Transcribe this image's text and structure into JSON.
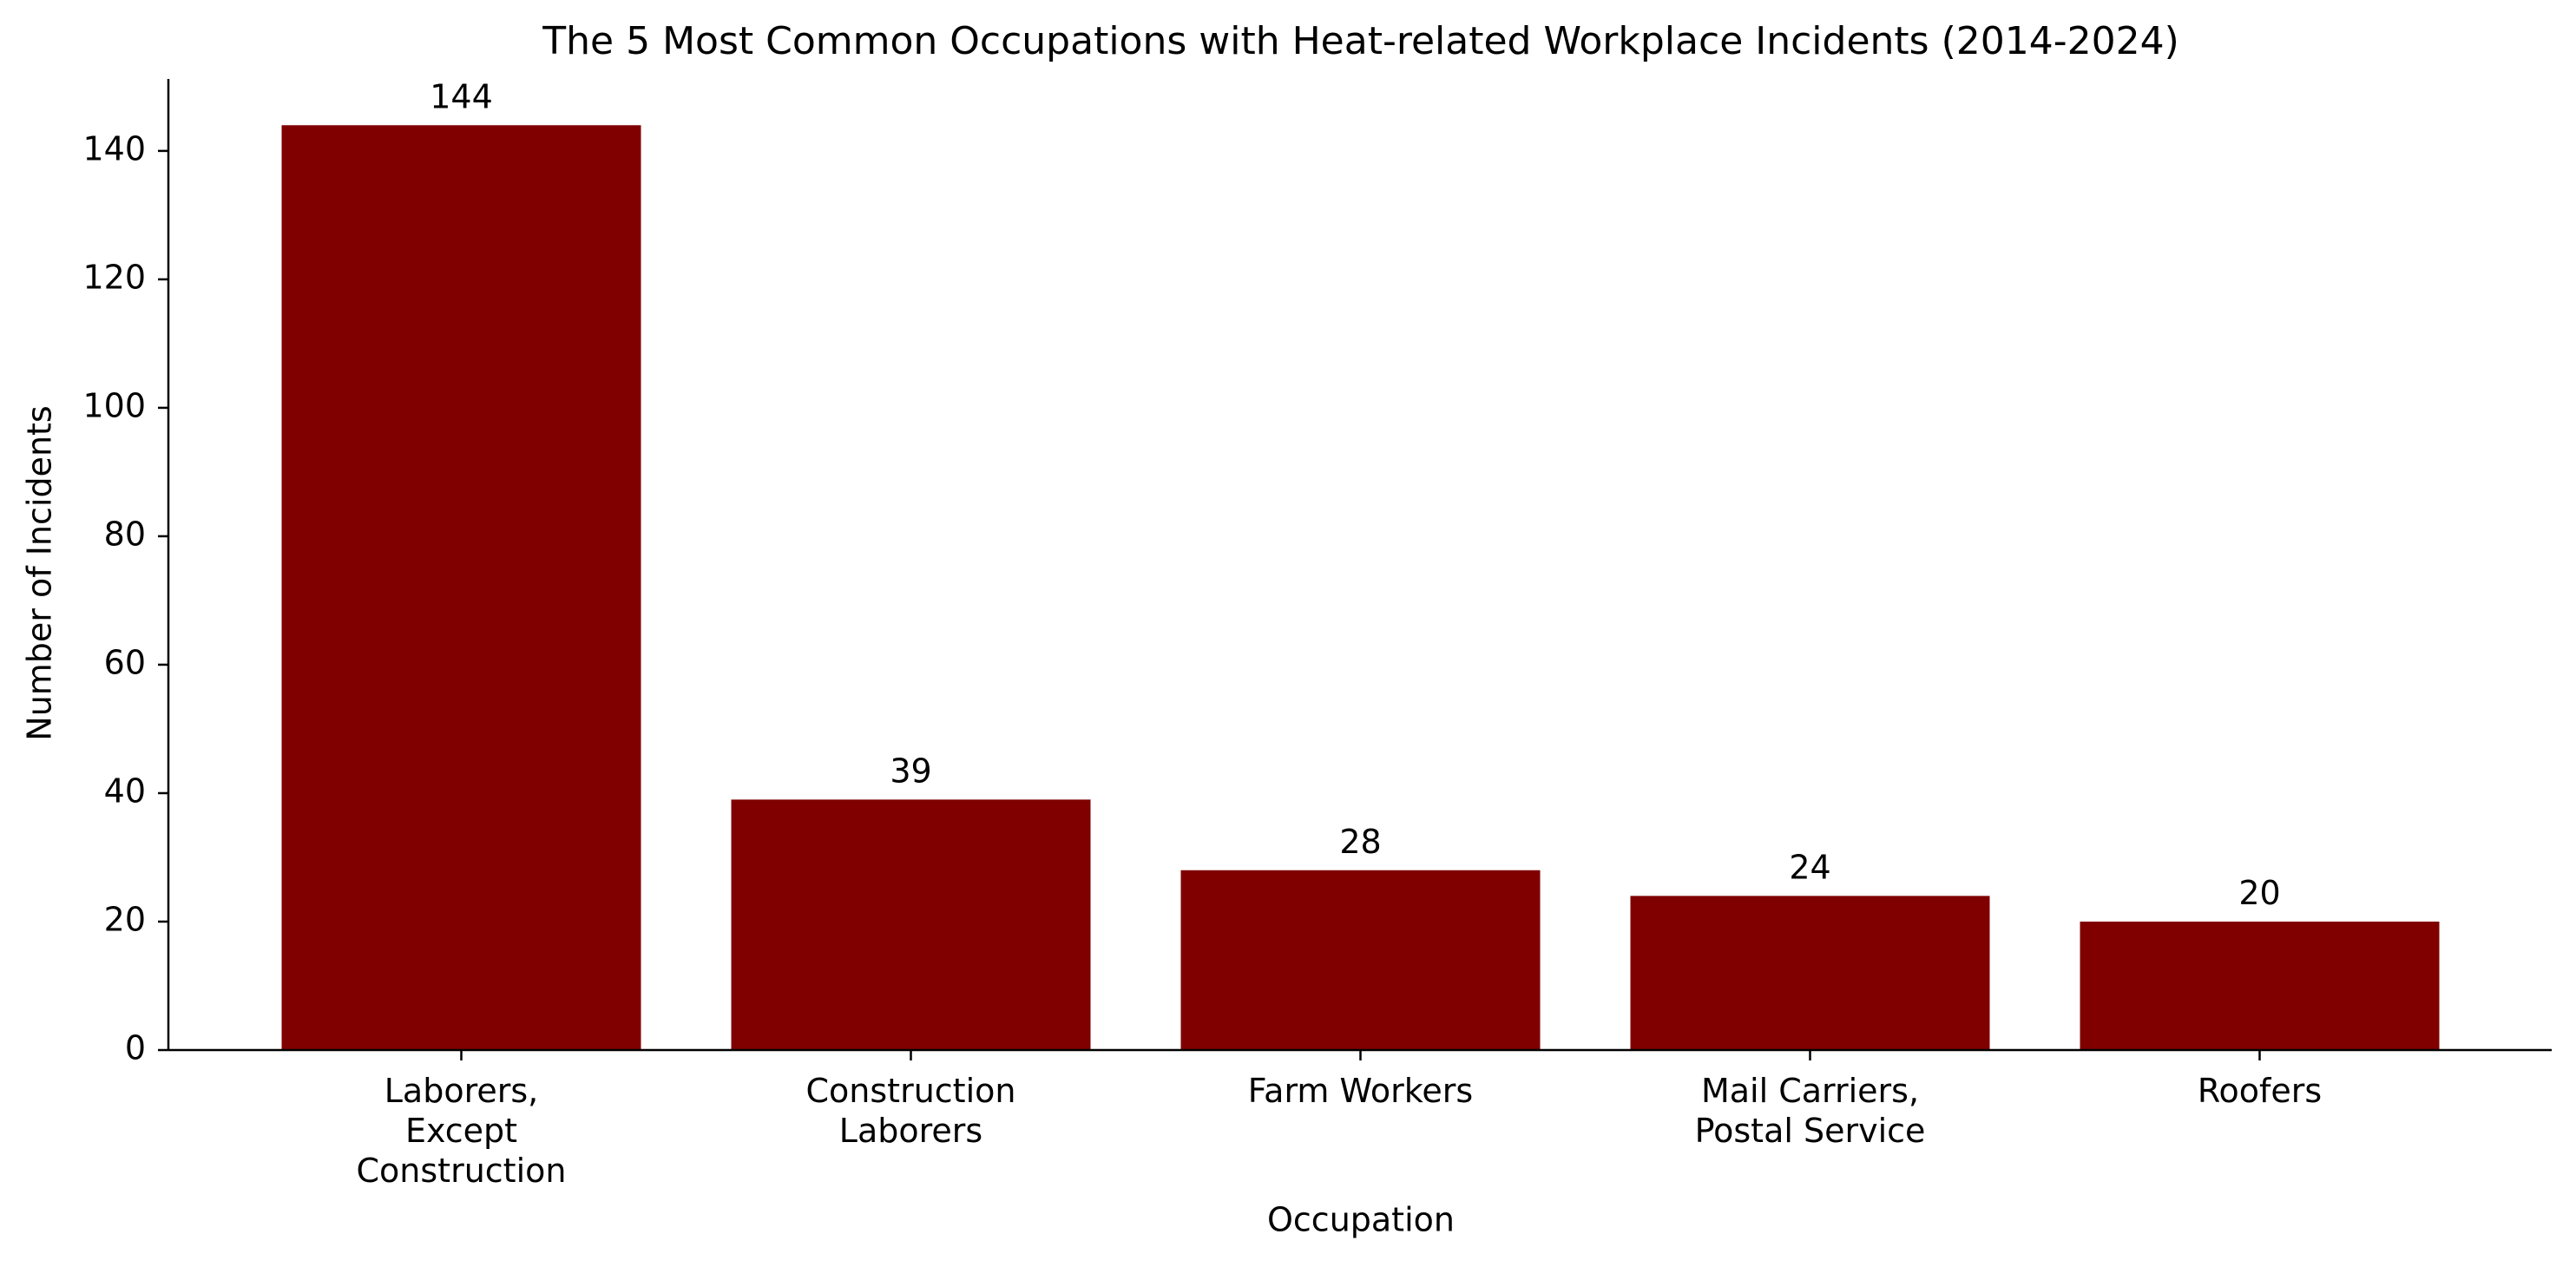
{
  "chart_data": {
    "type": "bar",
    "title": "The 5 Most Common Occupations with Heat-related Workplace Incidents (2014-2024)",
    "xlabel": "Occupation",
    "ylabel": "Number of Incidents",
    "categories": [
      [
        "Laborers,",
        "Except",
        "Construction"
      ],
      [
        "Construction",
        "Laborers"
      ],
      [
        "Farm Workers"
      ],
      [
        "Mail Carriers,",
        "Postal Service"
      ],
      [
        "Roofers"
      ]
    ],
    "values": [
      144,
      39,
      28,
      24,
      20
    ],
    "data_labels": [
      "144",
      "39",
      "28",
      "24",
      "20"
    ],
    "ylim": [
      0,
      151.2
    ],
    "yticks": [
      0,
      20,
      40,
      60,
      80,
      100,
      120,
      140
    ],
    "grid": false,
    "legend": "none",
    "bar_color": "#800000",
    "axis_color": "#000000"
  }
}
